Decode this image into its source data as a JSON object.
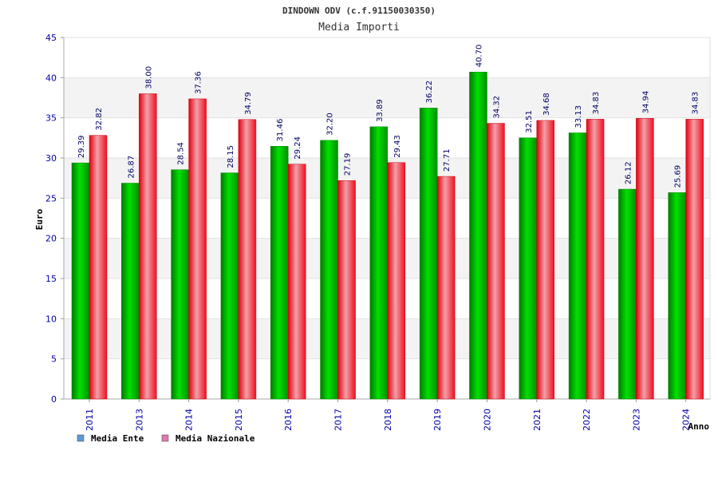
{
  "chart_data": {
    "type": "bar",
    "title": "DINDOWN ODV (c.f.91150030350)",
    "subtitle": "Media Importi",
    "xlabel": "Anno",
    "ylabel": "Euro",
    "ylim": [
      0,
      45
    ],
    "yticks": [
      0,
      5,
      10,
      15,
      20,
      25,
      30,
      35,
      40,
      45
    ],
    "categories": [
      "2011",
      "2013",
      "2014",
      "2015",
      "2016",
      "2017",
      "2018",
      "2019",
      "2020",
      "2021",
      "2022",
      "2023",
      "2024"
    ],
    "series": [
      {
        "name": "Media Ente",
        "color": "#00c000",
        "legend_color": "#5b9bd5",
        "values": [
          29.39,
          26.87,
          28.54,
          28.15,
          31.46,
          32.2,
          33.89,
          36.22,
          40.7,
          32.51,
          33.13,
          26.12,
          25.69
        ],
        "labels": [
          "29.39",
          "26.87",
          "28.54",
          "28.15",
          "31.46",
          "32.20",
          "33.89",
          "36.22",
          "40.70",
          "32.51",
          "33.13",
          "26.12",
          "25.69"
        ]
      },
      {
        "name": "Media Nazionale",
        "color": "#f0202a",
        "legend_color": "#e07ab0",
        "values": [
          32.82,
          38.0,
          37.36,
          34.79,
          29.24,
          27.19,
          29.43,
          27.71,
          34.32,
          34.68,
          34.83,
          34.94,
          34.83
        ],
        "labels": [
          "32.82",
          "38.00",
          "37.36",
          "34.79",
          "29.24",
          "27.19",
          "29.43",
          "27.71",
          "34.32",
          "34.68",
          "34.83",
          "34.94",
          "34.83"
        ]
      }
    ],
    "grid": true,
    "legend_position": "bottom-left"
  }
}
